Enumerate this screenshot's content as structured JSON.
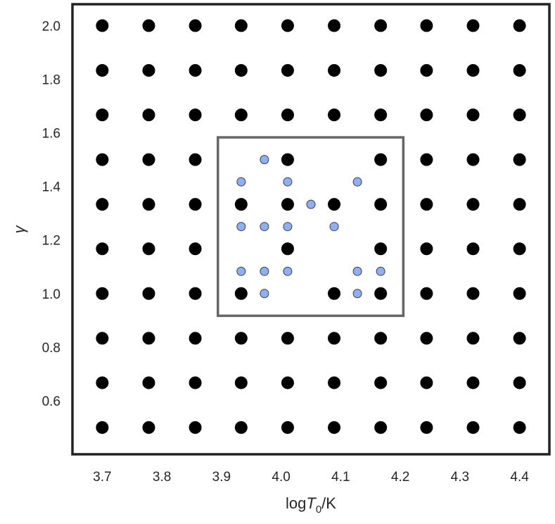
{
  "chart_data": {
    "type": "scatter",
    "title": "",
    "xlabel": {
      "prefix": "log",
      "symbol": "T",
      "subscript": "0",
      "suffix": "/K"
    },
    "ylabel": "γ",
    "xlim": [
      3.65,
      4.45
    ],
    "ylim": [
      0.4,
      2.08
    ],
    "grid": false,
    "legend": "none",
    "xticks": [
      3.7,
      3.8,
      3.9,
      4.0,
      4.1,
      4.2,
      4.3,
      4.4
    ],
    "xtick_labels": [
      "3.7",
      "3.8",
      "3.9",
      "4.0",
      "4.1",
      "4.2",
      "4.3",
      "4.4"
    ],
    "yticks": [
      0.6,
      0.8,
      1.0,
      1.2,
      1.4,
      1.6,
      1.8,
      2.0
    ],
    "ytick_labels": [
      "0.6",
      "0.8",
      "1.0",
      "1.2",
      "1.4",
      "1.6",
      "1.8",
      "2.0"
    ],
    "series": [
      {
        "color": "#000000",
        "edge_color": "#000000",
        "marker_size": "large",
        "grid_x": [
          3.7,
          3.778,
          3.856,
          3.933,
          4.011,
          4.089,
          4.167,
          4.244,
          4.322,
          4.4
        ],
        "grid_y": [
          0.5,
          0.667,
          0.833,
          1.0,
          1.167,
          1.333,
          1.5,
          1.667,
          1.833,
          2.0
        ],
        "omit": [
          [
            4.011,
            1.0
          ],
          [
            3.933,
            1.167
          ],
          [
            4.089,
            1.167
          ],
          [
            3.933,
            1.5
          ],
          [
            4.089,
            1.5
          ]
        ]
      },
      {
        "color": "#90aff0",
        "edge_color": "#3a3a48",
        "marker_size": "small",
        "points": [
          [
            3.972,
            1.5
          ],
          [
            3.933,
            1.417
          ],
          [
            4.011,
            1.417
          ],
          [
            4.128,
            1.417
          ],
          [
            4.05,
            1.333
          ],
          [
            3.933,
            1.25
          ],
          [
            3.972,
            1.25
          ],
          [
            4.011,
            1.25
          ],
          [
            4.089,
            1.25
          ],
          [
            3.933,
            1.083
          ],
          [
            3.972,
            1.083
          ],
          [
            4.011,
            1.083
          ],
          [
            4.128,
            1.083
          ],
          [
            4.167,
            1.083
          ],
          [
            3.972,
            1.0
          ],
          [
            4.128,
            1.0
          ]
        ]
      }
    ],
    "annotations": [
      {
        "type": "rectangle",
        "color": "#666666",
        "x": [
          3.894,
          4.205
        ],
        "y": [
          0.917,
          1.583
        ]
      }
    ],
    "frame_color": "#222222"
  }
}
